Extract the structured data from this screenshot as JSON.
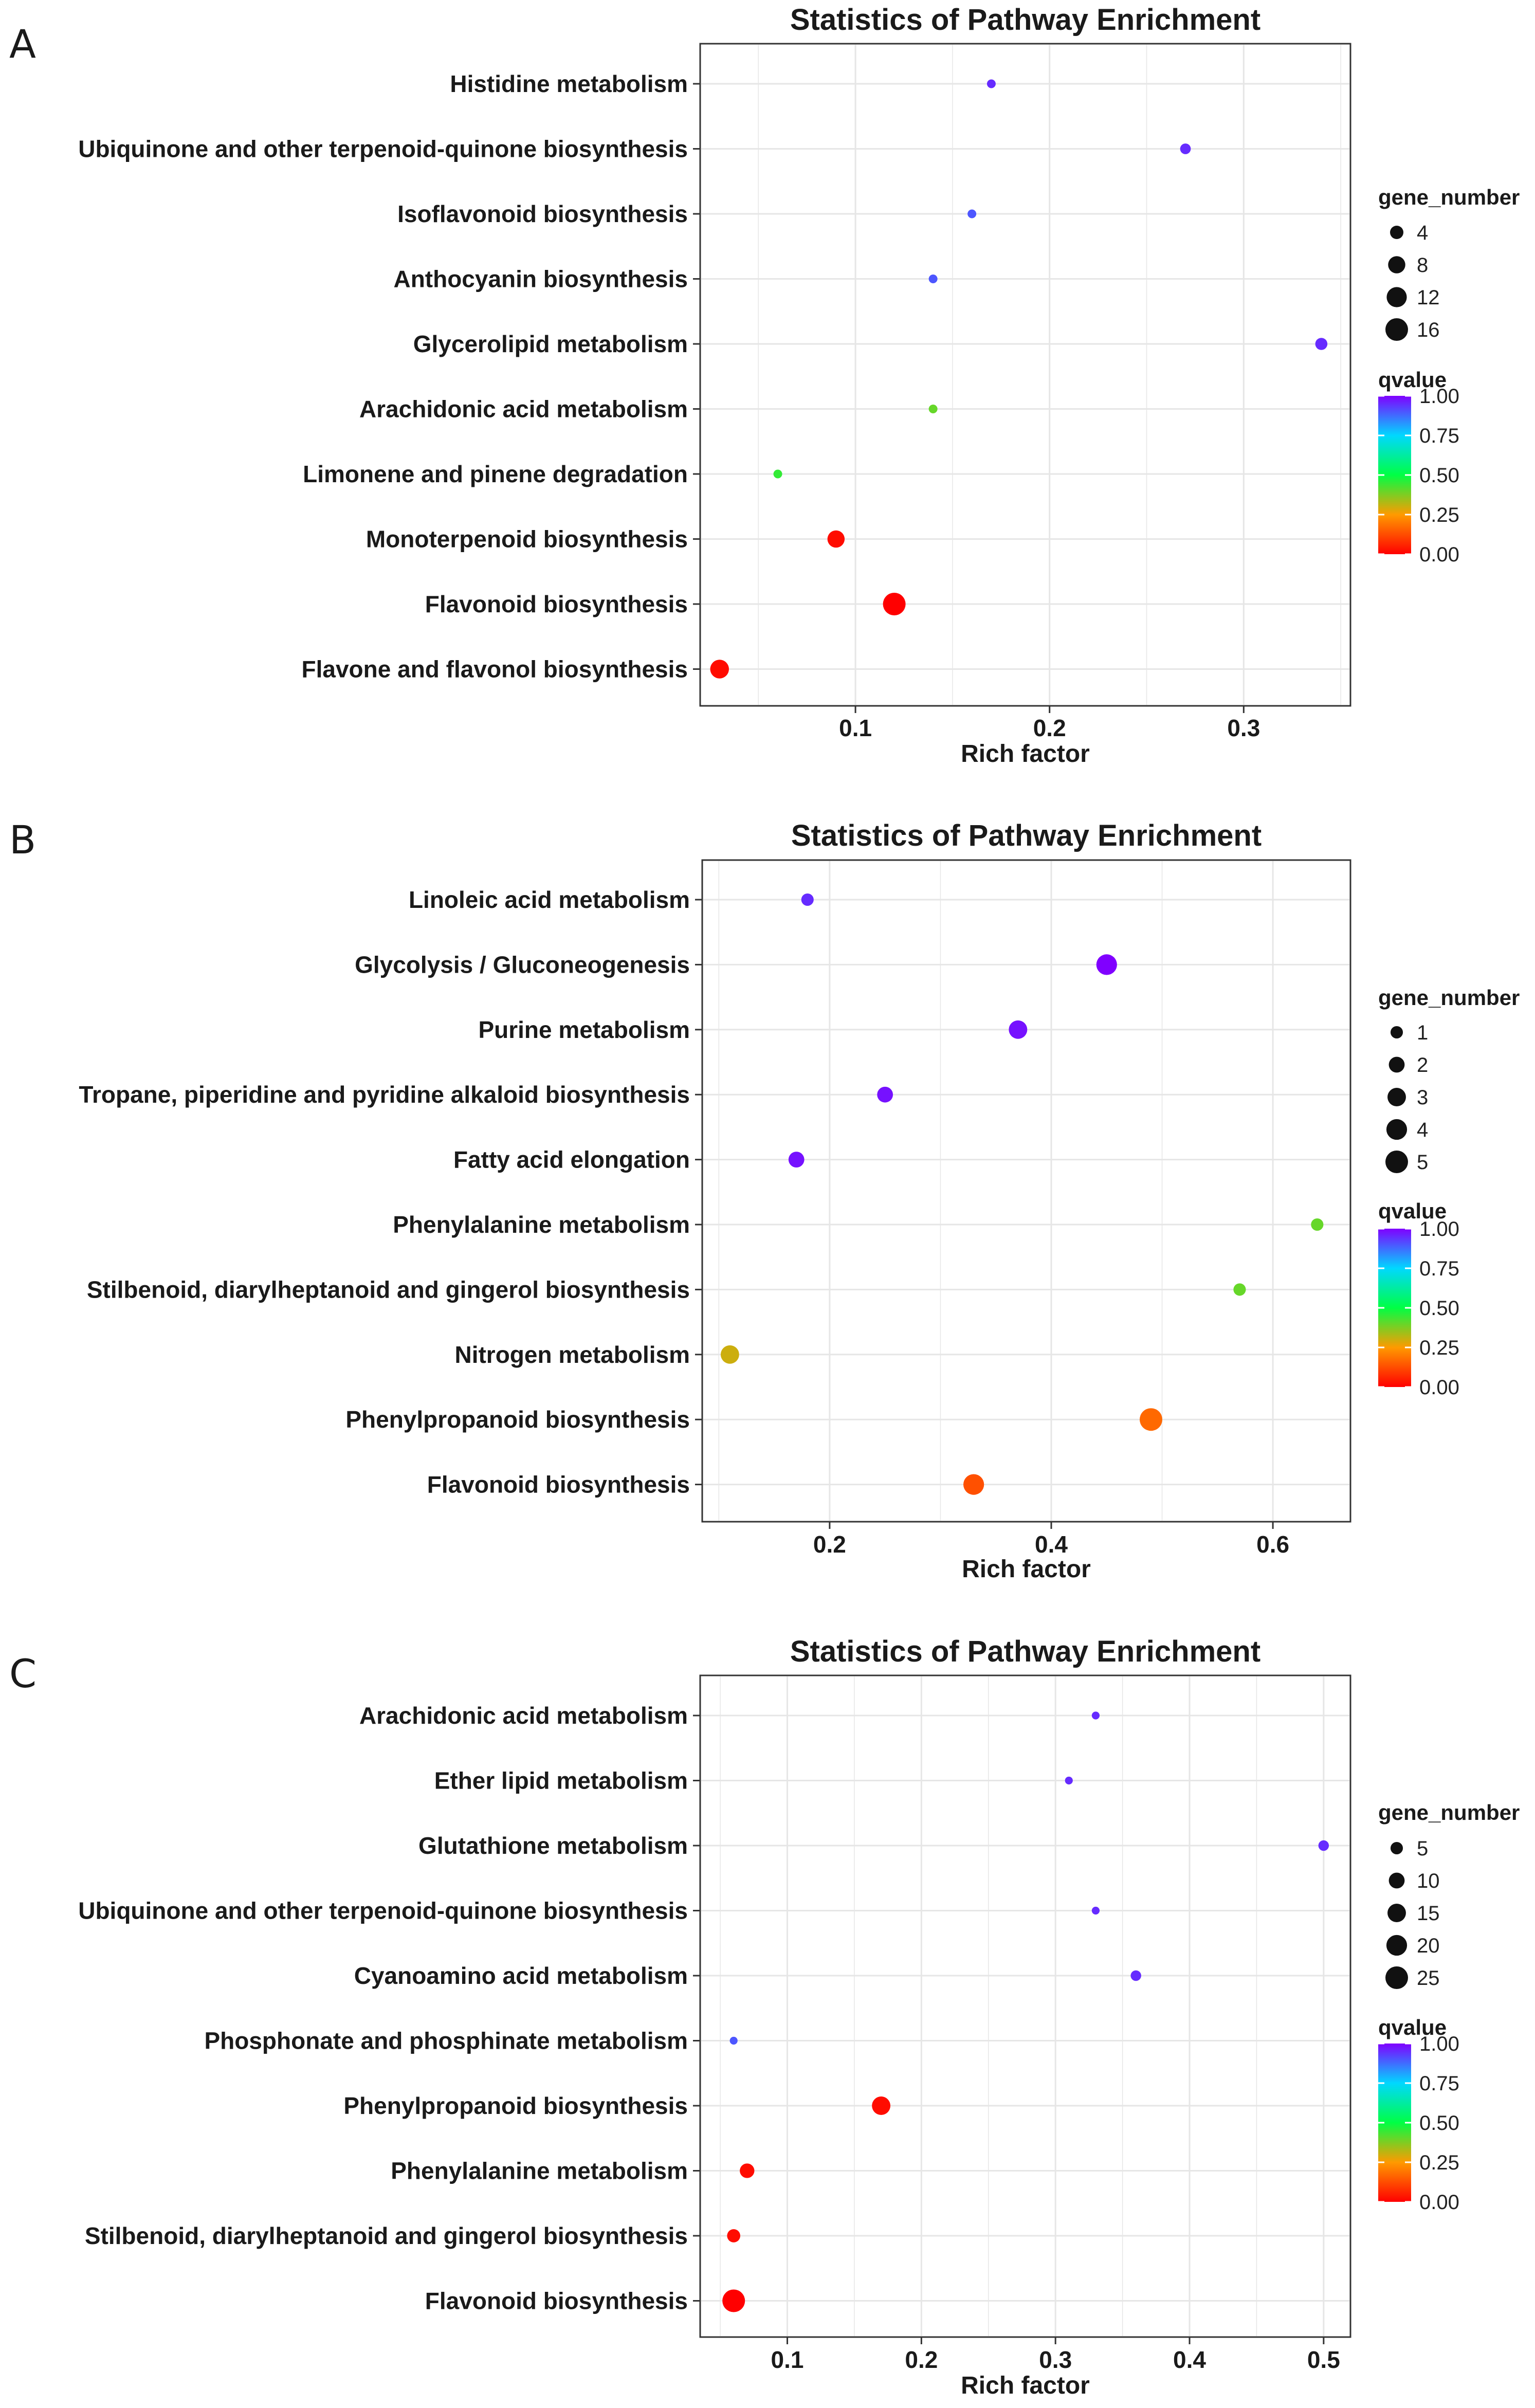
{
  "colors": {
    "q0": "#ff0000",
    "q025": "#ff9a00",
    "q050": "#00ff44",
    "q075": "#00d8ff",
    "q100": "#8000ff",
    "grid": "#e6e6e6",
    "frame": "#333333"
  },
  "chart_data": [
    {
      "panel_label": "A",
      "type": "scatter",
      "title": "Statistics of Pathway Enrichment",
      "xlabel": "Rich factor",
      "xlim": [
        0.02,
        0.355
      ],
      "xticks": [
        0.1,
        0.2,
        0.3
      ],
      "xtick_labels": [
        "0.1",
        "0.2",
        "0.3"
      ],
      "size_legend": {
        "title": "gene_number",
        "values": [
          4,
          8,
          12,
          16
        ],
        "labels": [
          "4",
          "8",
          "12",
          "16"
        ]
      },
      "color_legend": {
        "title": "qvalue",
        "labels": [
          "1.00",
          "0.75",
          "0.50",
          "0.25",
          "0.00"
        ]
      },
      "pathways": [
        {
          "name": "Histidine metabolism",
          "rich_factor": 0.17,
          "gene_number": 1,
          "qvalue": 0.95
        },
        {
          "name": "Ubiquinone and other terpenoid-quinone biosynthesis",
          "rich_factor": 0.27,
          "gene_number": 2,
          "qvalue": 0.95
        },
        {
          "name": "Isoflavonoid biosynthesis",
          "rich_factor": 0.16,
          "gene_number": 1,
          "qvalue": 0.9
        },
        {
          "name": "Anthocyanin biosynthesis",
          "rich_factor": 0.14,
          "gene_number": 1,
          "qvalue": 0.9
        },
        {
          "name": "Glycerolipid metabolism",
          "rich_factor": 0.34,
          "gene_number": 3,
          "qvalue": 0.95
        },
        {
          "name": "Arachidonic acid metabolism",
          "rich_factor": 0.14,
          "gene_number": 1,
          "qvalue": 0.4
        },
        {
          "name": "Limonene and pinene degradation",
          "rich_factor": 0.06,
          "gene_number": 1,
          "qvalue": 0.45
        },
        {
          "name": "Monoterpenoid biosynthesis",
          "rich_factor": 0.09,
          "gene_number": 8,
          "qvalue": 0.02
        },
        {
          "name": "Flavonoid biosynthesis",
          "rich_factor": 0.12,
          "gene_number": 16,
          "qvalue": 0.0
        },
        {
          "name": "Flavone and flavonol biosynthesis",
          "rich_factor": 0.03,
          "gene_number": 10,
          "qvalue": 0.02
        }
      ]
    },
    {
      "panel_label": "B",
      "type": "scatter",
      "title": "Statistics of Pathway Enrichment",
      "xlabel": "Rich factor",
      "xlim": [
        0.085,
        0.67
      ],
      "xticks": [
        0.2,
        0.4,
        0.6
      ],
      "xtick_labels": [
        "0.2",
        "0.4",
        "0.6"
      ],
      "size_legend": {
        "title": "gene_number",
        "values": [
          1,
          2,
          3,
          4,
          5
        ],
        "labels": [
          "1",
          "2",
          "3",
          "4",
          "5"
        ]
      },
      "color_legend": {
        "title": "qvalue",
        "labels": [
          "1.00",
          "0.75",
          "0.50",
          "0.25",
          "0.00"
        ]
      },
      "pathways": [
        {
          "name": "Linoleic acid metabolism",
          "rich_factor": 0.18,
          "gene_number": 1,
          "qvalue": 0.95
        },
        {
          "name": "Glycolysis / Gluconeogenesis",
          "rich_factor": 0.45,
          "gene_number": 4,
          "qvalue": 1.0
        },
        {
          "name": "Purine metabolism",
          "rich_factor": 0.37,
          "gene_number": 3,
          "qvalue": 0.98
        },
        {
          "name": "Tropane, piperidine and pyridine alkaloid biosynthesis",
          "rich_factor": 0.25,
          "gene_number": 2,
          "qvalue": 0.98
        },
        {
          "name": "Fatty acid elongation",
          "rich_factor": 0.17,
          "gene_number": 2,
          "qvalue": 0.98
        },
        {
          "name": "Phenylalanine metabolism",
          "rich_factor": 0.64,
          "gene_number": 1,
          "qvalue": 0.4
        },
        {
          "name": "Stilbenoid, diarylheptanoid and gingerol biosynthesis",
          "rich_factor": 0.57,
          "gene_number": 1,
          "qvalue": 0.4
        },
        {
          "name": "Nitrogen metabolism",
          "rich_factor": 0.11,
          "gene_number": 3,
          "qvalue": 0.3
        },
        {
          "name": "Phenylpropanoid biosynthesis",
          "rich_factor": 0.49,
          "gene_number": 5,
          "qvalue": 0.17
        },
        {
          "name": "Flavonoid biosynthesis",
          "rich_factor": 0.33,
          "gene_number": 4,
          "qvalue": 0.13
        }
      ]
    },
    {
      "panel_label": "C",
      "type": "scatter",
      "title": "Statistics of Pathway Enrichment",
      "xlabel": "Rich factor",
      "xlim": [
        0.035,
        0.52
      ],
      "xticks": [
        0.1,
        0.2,
        0.3,
        0.4,
        0.5
      ],
      "xtick_labels": [
        "0.1",
        "0.2",
        "0.3",
        "0.4",
        "0.5"
      ],
      "size_legend": {
        "title": "gene_number",
        "values": [
          5,
          10,
          15,
          20,
          25
        ],
        "labels": [
          "5",
          "10",
          "15",
          "20",
          "25"
        ]
      },
      "color_legend": {
        "title": "qvalue",
        "labels": [
          "1.00",
          "0.75",
          "0.50",
          "0.25",
          "0.00"
        ]
      },
      "pathways": [
        {
          "name": "Arachidonic acid metabolism",
          "rich_factor": 0.33,
          "gene_number": 1,
          "qvalue": 0.95
        },
        {
          "name": "Ether lipid metabolism",
          "rich_factor": 0.31,
          "gene_number": 1,
          "qvalue": 0.95
        },
        {
          "name": "Glutathione metabolism",
          "rich_factor": 0.5,
          "gene_number": 3,
          "qvalue": 0.95
        },
        {
          "name": "Ubiquinone and other terpenoid-quinone biosynthesis",
          "rich_factor": 0.33,
          "gene_number": 1,
          "qvalue": 0.95
        },
        {
          "name": "Cyanoamino acid metabolism",
          "rich_factor": 0.36,
          "gene_number": 3,
          "qvalue": 0.95
        },
        {
          "name": "Phosphonate and phosphinate metabolism",
          "rich_factor": 0.06,
          "gene_number": 1,
          "qvalue": 0.9
        },
        {
          "name": "Phenylpropanoid biosynthesis",
          "rich_factor": 0.17,
          "gene_number": 15,
          "qvalue": 0.02
        },
        {
          "name": "Phenylalanine metabolism",
          "rich_factor": 0.07,
          "gene_number": 8,
          "qvalue": 0.02
        },
        {
          "name": "Stilbenoid, diarylheptanoid and gingerol biosynthesis",
          "rich_factor": 0.06,
          "gene_number": 6,
          "qvalue": 0.02
        },
        {
          "name": "Flavonoid biosynthesis",
          "rich_factor": 0.06,
          "gene_number": 25,
          "qvalue": 0.0
        }
      ]
    }
  ]
}
